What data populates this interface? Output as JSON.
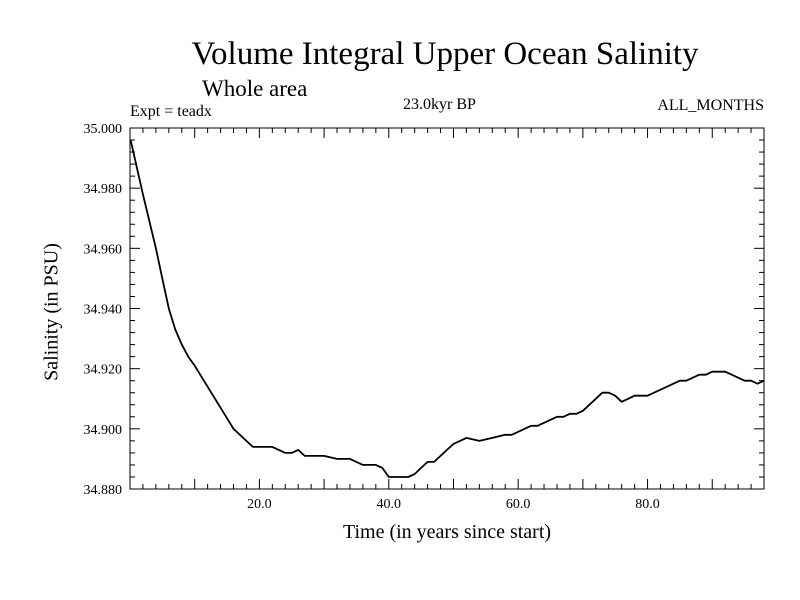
{
  "chart_data": {
    "type": "line",
    "title": "Volume Integral Upper Ocean Salinity",
    "subtitle": "Whole area",
    "experiment": "Expt = teadx",
    "period": "23.0kyr BP",
    "months": "ALL_MONTHS",
    "xlabel": "Time (in years since start)",
    "ylabel": "Salinity (in PSU)",
    "xlim": [
      0,
      98
    ],
    "ylim": [
      34.88,
      35.0
    ],
    "xticks": [
      20,
      40,
      60,
      80
    ],
    "xtick_labels": [
      "20.0",
      "40.0",
      "60.0",
      "80.0"
    ],
    "yticks": [
      34.88,
      34.9,
      34.92,
      34.94,
      34.96,
      34.98,
      35.0
    ],
    "ytick_labels": [
      "34.880",
      "34.900",
      "34.920",
      "34.940",
      "34.960",
      "34.980",
      "35.000"
    ],
    "grid": false,
    "series": [
      {
        "name": "Salinity",
        "x": [
          0.1,
          2,
          4,
          5,
          6,
          7,
          8,
          9,
          10,
          12,
          14,
          16,
          18,
          19,
          20,
          22,
          24,
          25,
          26,
          27,
          28,
          30,
          32,
          33,
          34,
          35,
          36,
          37,
          38,
          39,
          40,
          41,
          42,
          43,
          44,
          45,
          46,
          47,
          48,
          50,
          52,
          54,
          56,
          58,
          59,
          60,
          61,
          62,
          63,
          64,
          65,
          66,
          67,
          68,
          69,
          70,
          71,
          72,
          73,
          74,
          75,
          76,
          77,
          78,
          79,
          80,
          81,
          82,
          83,
          84,
          85,
          86,
          87,
          88,
          89,
          90,
          91,
          92,
          93,
          94,
          95,
          96,
          97,
          98
        ],
        "values": [
          34.996,
          34.978,
          34.96,
          34.95,
          34.94,
          34.933,
          34.928,
          34.924,
          34.921,
          34.914,
          34.907,
          34.9,
          34.896,
          34.894,
          34.894,
          34.894,
          34.892,
          34.892,
          34.893,
          34.891,
          34.891,
          34.891,
          34.89,
          34.89,
          34.89,
          34.889,
          34.888,
          34.888,
          34.888,
          34.887,
          34.884,
          34.884,
          34.884,
          34.884,
          34.885,
          34.887,
          34.889,
          34.889,
          34.891,
          34.895,
          34.897,
          34.896,
          34.897,
          34.898,
          34.898,
          34.899,
          34.9,
          34.901,
          34.901,
          34.902,
          34.903,
          34.904,
          34.904,
          34.905,
          34.905,
          34.906,
          34.908,
          34.91,
          34.912,
          34.912,
          34.911,
          34.909,
          34.91,
          34.911,
          34.911,
          34.911,
          34.912,
          34.913,
          34.914,
          34.915,
          34.916,
          34.916,
          34.917,
          34.918,
          34.918,
          34.919,
          34.919,
          34.919,
          34.918,
          34.917,
          34.916,
          34.916,
          34.915,
          34.916
        ]
      }
    ]
  }
}
